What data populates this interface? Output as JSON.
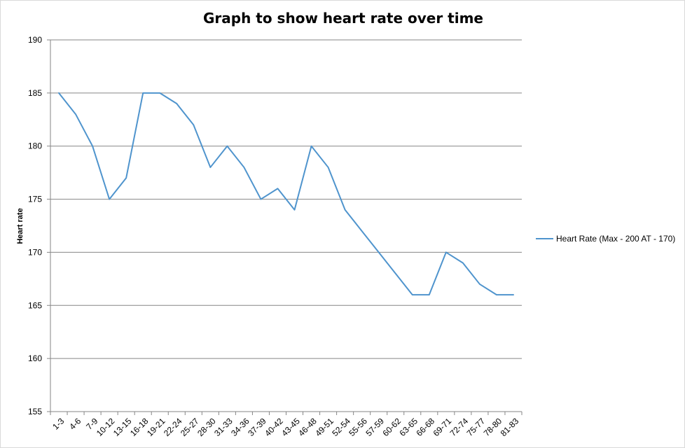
{
  "chart_data": {
    "type": "line",
    "title": "Graph to show heart rate over time",
    "xlabel": "",
    "ylabel": "Heart rate",
    "categories": [
      "1-3",
      "4-6",
      "7-9",
      "10-12",
      "13-15",
      "16-18",
      "19-21",
      "22-24",
      "25-27",
      "28-30",
      "31-33",
      "34-36",
      "37-39",
      "40-42",
      "43-45",
      "46-48",
      "49-51",
      "52-54",
      "55-56",
      "57-59",
      "60-62",
      "63-65",
      "66-68",
      "69-71",
      "72-74",
      "75-77",
      "78-80",
      "81-83"
    ],
    "series": [
      {
        "name": "Heart Rate (Max - 200 AT - 170)",
        "values": [
          185,
          183,
          180,
          175,
          177,
          185,
          185,
          184,
          182,
          178,
          180,
          178,
          175,
          176,
          174,
          180,
          178,
          174,
          172,
          170,
          168,
          166,
          166,
          170,
          169,
          167,
          166,
          166
        ]
      }
    ],
    "ylim": [
      155,
      190
    ],
    "yticks": [
      155,
      160,
      165,
      170,
      175,
      180,
      185,
      190
    ],
    "grid": "horizontal",
    "legend_position": "right",
    "colors": {
      "line": "#4f94cd",
      "grid": "#868686",
      "axis": "#868686"
    }
  }
}
